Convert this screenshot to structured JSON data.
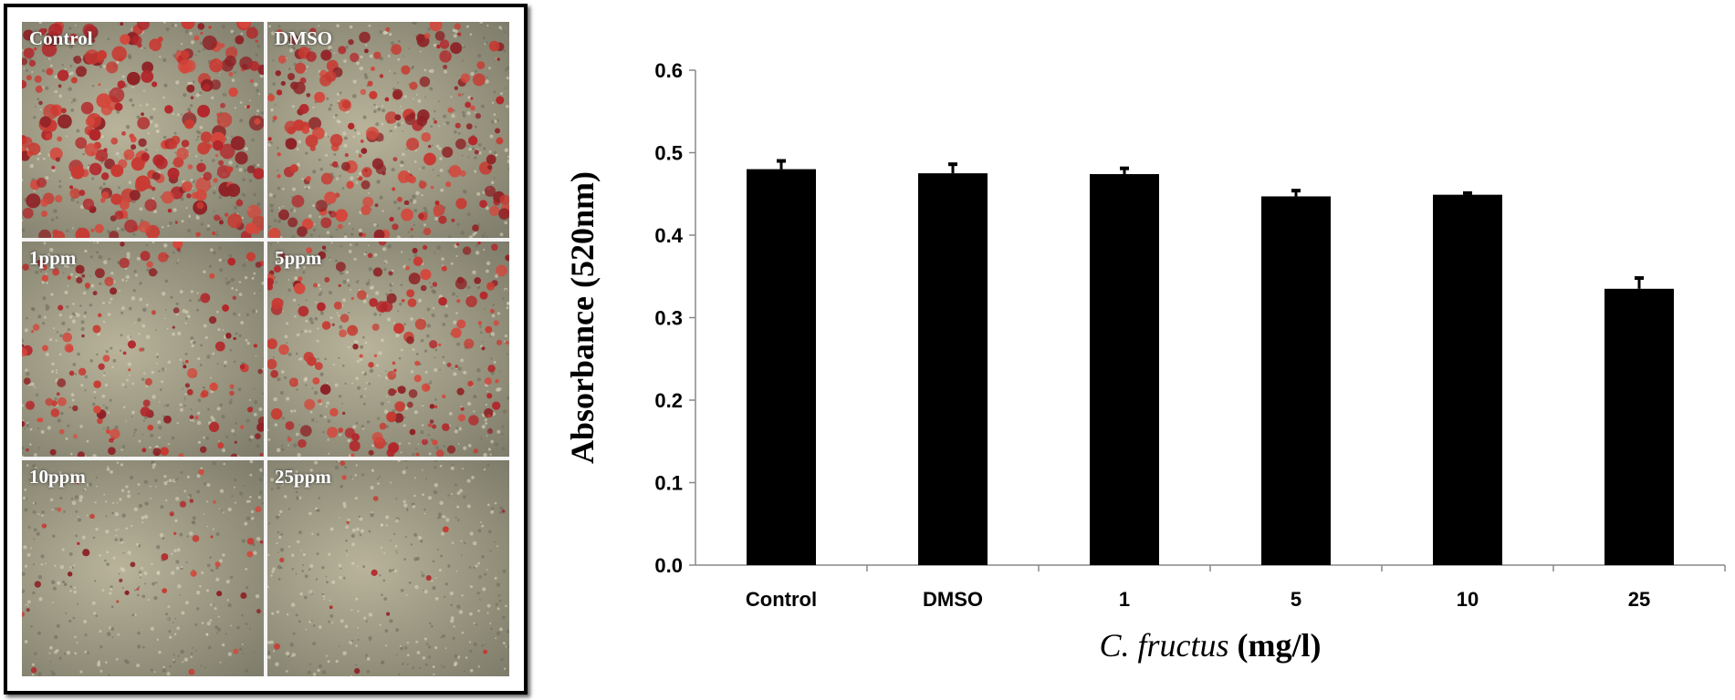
{
  "micrographs": [
    {
      "label": "Control",
      "density": 1.0
    },
    {
      "label": "DMSO",
      "density": 0.75
    },
    {
      "label": "1ppm",
      "density": 0.45
    },
    {
      "label": "5ppm",
      "density": 0.6
    },
    {
      "label": "10ppm",
      "density": 0.12
    },
    {
      "label": "25ppm",
      "density": 0.03
    }
  ],
  "chart_data": {
    "type": "bar",
    "title": "",
    "categories": [
      "Control",
      "DMSO",
      "1",
      "5",
      "10",
      "25"
    ],
    "values": [
      0.48,
      0.475,
      0.474,
      0.447,
      0.449,
      0.335
    ],
    "error_plus": [
      0.01,
      0.011,
      0.007,
      0.007,
      0.002,
      0.013
    ],
    "ylabel": "Absorbance (520nm)",
    "xlabel_italic": "C. fructus",
    "xlabel_unit": " (mg/l)",
    "ylim": [
      0,
      0.6
    ],
    "yticks": [
      "0.0",
      "0.1",
      "0.2",
      "0.3",
      "0.4",
      "0.5",
      "0.6"
    ],
    "bar_color": "#000000",
    "grid": false
  }
}
